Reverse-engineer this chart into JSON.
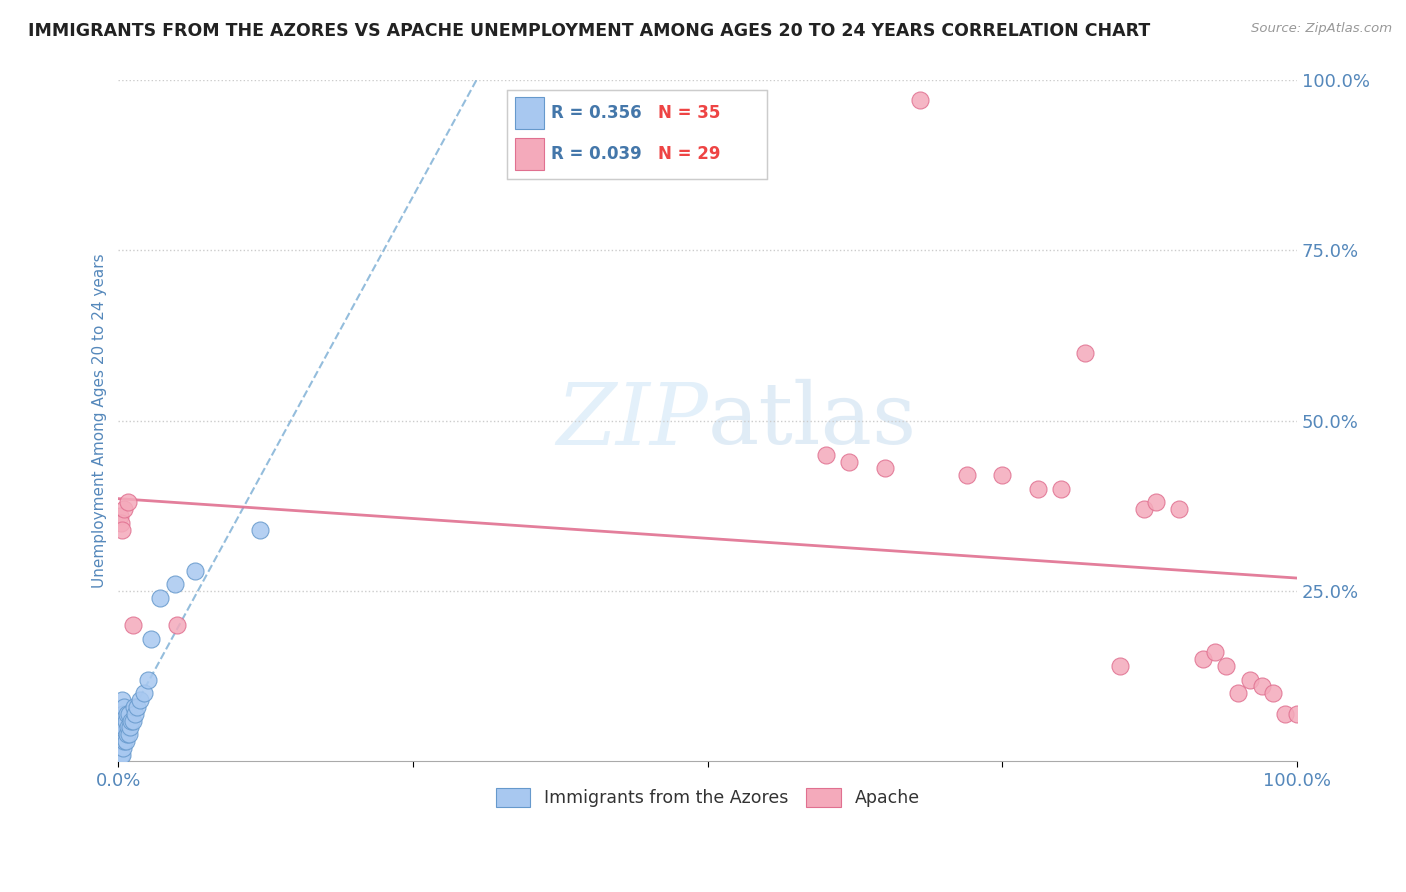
{
  "title": "IMMIGRANTS FROM THE AZORES VS APACHE UNEMPLOYMENT AMONG AGES 20 TO 24 YEARS CORRELATION CHART",
  "source": "Source: ZipAtlas.com",
  "ylabel": "Unemployment Among Ages 20 to 24 years",
  "legend1_label": "Immigrants from the Azores",
  "legend2_label": "Apache",
  "R1": 0.356,
  "N1": 35,
  "R2": 0.039,
  "N2": 29,
  "blue_color": "#A8C8F0",
  "blue_edge": "#6699CC",
  "pink_color": "#F4AABB",
  "pink_edge": "#E07090",
  "blue_trend_color": "#7AADD4",
  "pink_trend_color": "#E07090",
  "background_color": "#FFFFFF",
  "grid_color": "#CCCCCC",
  "title_color": "#222222",
  "axis_label_color": "#5588BB",
  "tick_label_color": "#5588BB",
  "watermark_color": "#D8EAF8",
  "blue_x": [
    0.001,
    0.001,
    0.002,
    0.002,
    0.003,
    0.003,
    0.003,
    0.003,
    0.004,
    0.004,
    0.004,
    0.005,
    0.005,
    0.005,
    0.006,
    0.006,
    0.007,
    0.007,
    0.008,
    0.009,
    0.009,
    0.01,
    0.011,
    0.012,
    0.013,
    0.014,
    0.016,
    0.018,
    0.022,
    0.025,
    0.028,
    0.035,
    0.048,
    0.065,
    0.12
  ],
  "blue_y": [
    0.02,
    0.04,
    0.01,
    0.05,
    0.01,
    0.03,
    0.06,
    0.09,
    0.02,
    0.04,
    0.07,
    0.03,
    0.05,
    0.08,
    0.03,
    0.06,
    0.04,
    0.07,
    0.05,
    0.04,
    0.07,
    0.05,
    0.06,
    0.06,
    0.08,
    0.07,
    0.08,
    0.09,
    0.1,
    0.12,
    0.18,
    0.24,
    0.26,
    0.28,
    0.34
  ],
  "pink_x": [
    0.001,
    0.002,
    0.003,
    0.005,
    0.008,
    0.012,
    0.05,
    0.6,
    0.62,
    0.65,
    0.68,
    0.72,
    0.75,
    0.78,
    0.8,
    0.82,
    0.85,
    0.87,
    0.88,
    0.9,
    0.92,
    0.93,
    0.94,
    0.95,
    0.96,
    0.97,
    0.98,
    0.99,
    1.0
  ],
  "pink_y": [
    0.36,
    0.35,
    0.34,
    0.37,
    0.38,
    0.2,
    0.2,
    0.45,
    0.44,
    0.43,
    0.97,
    0.42,
    0.42,
    0.4,
    0.4,
    0.6,
    0.14,
    0.37,
    0.38,
    0.37,
    0.15,
    0.16,
    0.14,
    0.1,
    0.12,
    0.11,
    0.1,
    0.07,
    0.07
  ],
  "xlim": [
    0.0,
    1.0
  ],
  "ylim": [
    0.0,
    1.0
  ]
}
